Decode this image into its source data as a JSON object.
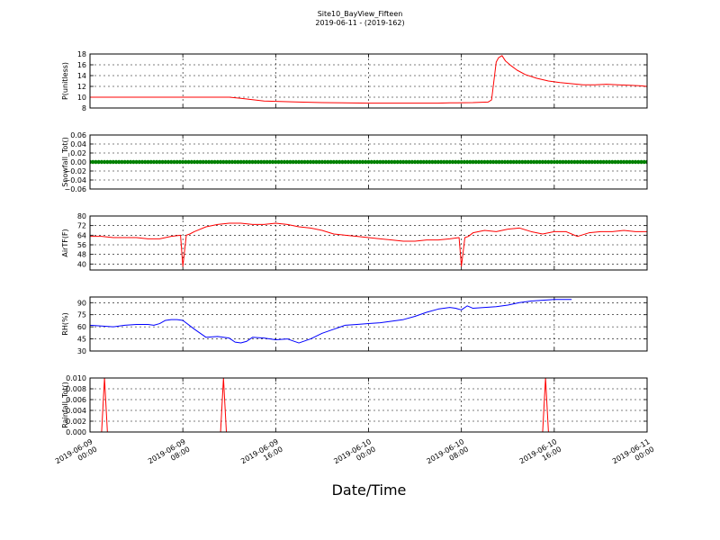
{
  "figure": {
    "title": "Site10_BayView_Fifteen",
    "subtitle": "2019-06-11 - (2019-162)",
    "xlabel": "Date/Time"
  },
  "chart_data": [
    {
      "type": "line",
      "ylabel": "P(unitless)",
      "color": "#ff0000",
      "ylim": [
        8,
        18
      ],
      "yticks": [
        "8",
        "10",
        "12",
        "14",
        "16",
        "18"
      ],
      "xlim": [
        "2019-06-09 00:00",
        "2019-06-11 00:00"
      ],
      "x_hours": [
        0,
        4,
        8,
        12,
        13,
        15,
        18,
        20,
        24,
        28,
        30,
        31,
        33,
        34.3,
        34.6,
        35,
        35.2,
        35.5,
        35.8,
        36.3,
        36.8,
        37.5,
        38.5,
        39.5,
        40.5,
        41.5,
        42.5,
        43.5,
        44.5,
        45.5,
        46.5,
        47.5,
        48
      ],
      "values": [
        10.0,
        10.0,
        10.0,
        10.0,
        9.8,
        9.3,
        9.1,
        9.0,
        8.9,
        8.9,
        8.9,
        8.95,
        9.0,
        9.1,
        9.5,
        16.5,
        17.3,
        17.7,
        16.7,
        15.8,
        15.0,
        14.2,
        13.5,
        13.0,
        12.7,
        12.5,
        12.3,
        12.3,
        12.4,
        12.3,
        12.2,
        12.1,
        12.0
      ]
    },
    {
      "type": "scatter",
      "ylabel": "Snowfall_Tot()",
      "color": "#008000",
      "ylim": [
        -0.06,
        0.06
      ],
      "yticks": [
        "0.06",
        "0.04",
        "0.02",
        "0.00",
        "−0.02",
        "−0.04",
        "−0.06"
      ],
      "xlim": [
        "2019-06-09 00:00",
        "2019-06-11 00:00"
      ],
      "constant_value": 0.0,
      "interval_minutes": 15
    },
    {
      "type": "line",
      "ylabel": "AirTF(F)",
      "color": "#ff0000",
      "ylim": [
        35,
        80
      ],
      "yticks": [
        "80",
        "72",
        "64",
        "56",
        "48",
        "40"
      ],
      "xlim": [
        "2019-06-09 00:00",
        "2019-06-11 00:00"
      ],
      "x_hours": [
        0,
        1,
        2,
        3,
        4,
        5,
        6,
        7,
        7.8,
        8.0,
        8.3,
        8.6,
        9.0,
        10,
        11,
        12,
        13,
        14,
        15,
        16,
        17,
        18,
        19,
        20,
        21,
        22,
        23,
        24,
        25,
        26,
        27,
        28,
        29,
        30,
        31,
        31.8,
        32.0,
        32.3,
        32.6,
        33,
        34,
        35,
        36,
        37,
        38,
        39,
        40,
        41,
        42,
        43,
        44,
        45,
        46,
        47,
        48
      ],
      "values": [
        63,
        63,
        62,
        62,
        62,
        61,
        61,
        63,
        64,
        38,
        64,
        65,
        67,
        71,
        73,
        74,
        74,
        73,
        73,
        74,
        73,
        71,
        70,
        68,
        65,
        64,
        63,
        62,
        61,
        60,
        59,
        59,
        60,
        60,
        61,
        62,
        38,
        62,
        63,
        66,
        68,
        67,
        69,
        70,
        67,
        65,
        67,
        67,
        63,
        66,
        67,
        67,
        68,
        67,
        67
      ]
    },
    {
      "type": "line",
      "ylabel": "RH(%)",
      "color": "#0000ff",
      "ylim": [
        30,
        97
      ],
      "yticks": [
        "90",
        "75",
        "60",
        "45",
        "30"
      ],
      "xlim": [
        "2019-06-09 00:00",
        "2019-06-11 00:00"
      ],
      "x_hours": [
        0,
        1,
        2,
        3,
        4,
        5,
        5.5,
        6,
        6.5,
        7,
        7.5,
        8,
        9,
        10,
        11,
        12,
        12.5,
        13,
        13.5,
        14,
        15,
        16,
        17,
        18,
        19,
        20,
        21,
        22,
        23,
        24,
        25,
        26,
        27,
        28,
        29,
        30,
        31,
        31.5,
        32,
        32.5,
        33,
        34,
        35,
        36,
        37,
        38,
        39,
        40,
        41,
        41.5
      ],
      "values": [
        62,
        61,
        60,
        62,
        63,
        63,
        62,
        64,
        68,
        69,
        69,
        68,
        57,
        47,
        48,
        46,
        41,
        40,
        42,
        47,
        46,
        44,
        45,
        40,
        45,
        52,
        57,
        62,
        63,
        64,
        65,
        67,
        69,
        73,
        78,
        82,
        84,
        83,
        81,
        86,
        83,
        84,
        85,
        87,
        90,
        92,
        93,
        94,
        94,
        94
      ]
    },
    {
      "type": "line",
      "ylabel": "Rainfall_Tot()",
      "color": "#ff0000",
      "ylim": [
        0.0,
        0.01
      ],
      "yticks": [
        "0.010",
        "0.008",
        "0.006",
        "0.004",
        "0.002",
        "0.000"
      ],
      "xlim": [
        "2019-06-09 00:00",
        "2019-06-11 00:00"
      ],
      "x_hours": [
        0,
        1.0,
        1.25,
        1.5,
        11.25,
        11.5,
        11.75,
        39.0,
        39.25,
        39.5,
        48
      ],
      "values": [
        0,
        0,
        0.01,
        0,
        0,
        0.01,
        0,
        0,
        0.01,
        0,
        0
      ],
      "xtick_labels": [
        [
          "2019-06-09",
          "00:00"
        ],
        [
          "2019-06-09",
          "08:00"
        ],
        [
          "2019-06-09",
          "16:00"
        ],
        [
          "2019-06-10",
          "00:00"
        ],
        [
          "2019-06-10",
          "08:00"
        ],
        [
          "2019-06-10",
          "16:00"
        ],
        [
          "2019-06-11",
          "00:00"
        ]
      ]
    }
  ]
}
